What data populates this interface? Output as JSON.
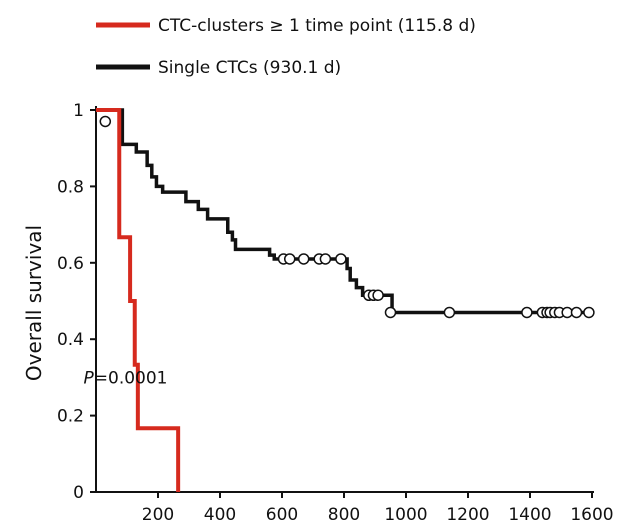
{
  "chart_data": {
    "type": "line",
    "title": "",
    "xlabel": "",
    "ylabel": "Overall survival",
    "xlim": [
      0,
      1600
    ],
    "ylim": [
      0,
      1
    ],
    "x_ticks": [
      200,
      400,
      600,
      800,
      1000,
      1200,
      1400,
      1600
    ],
    "y_ticks": [
      0,
      0.2,
      0.4,
      0.6,
      0.8,
      1
    ],
    "y_tick_labels": [
      "0",
      "0.2",
      "0.4",
      "0.6",
      "0.8",
      "1"
    ],
    "grid": false,
    "legend_position": "top-left",
    "annotation": {
      "prefix": "P",
      "value": "=0.0001",
      "x": 250,
      "y": 0.3
    },
    "series": [
      {
        "name": "CTC-clusters ≥ 1 time point (115.8 d)",
        "color": "#d62a1e",
        "steps": [
          [
            0,
            1.0
          ],
          [
            75,
            0.667
          ],
          [
            110,
            0.5
          ],
          [
            125,
            0.333
          ],
          [
            135,
            0.167
          ],
          [
            265,
            0.0
          ]
        ],
        "censored": []
      },
      {
        "name": "Single CTCs (930.1 d)",
        "color": "#111111",
        "steps": [
          [
            0,
            1.0
          ],
          [
            85,
            0.91
          ],
          [
            130,
            0.89
          ],
          [
            165,
            0.855
          ],
          [
            180,
            0.825
          ],
          [
            195,
            0.8
          ],
          [
            215,
            0.785
          ],
          [
            290,
            0.76
          ],
          [
            330,
            0.74
          ],
          [
            360,
            0.715
          ],
          [
            425,
            0.68
          ],
          [
            440,
            0.66
          ],
          [
            450,
            0.635
          ],
          [
            560,
            0.62
          ],
          [
            575,
            0.61
          ],
          [
            810,
            0.585
          ],
          [
            820,
            0.555
          ],
          [
            840,
            0.535
          ],
          [
            860,
            0.515
          ],
          [
            955,
            0.47
          ]
        ],
        "censored": [
          [
            30,
            0.97
          ],
          [
            605,
            0.61
          ],
          [
            625,
            0.61
          ],
          [
            670,
            0.61
          ],
          [
            720,
            0.61
          ],
          [
            740,
            0.61
          ],
          [
            790,
            0.61
          ],
          [
            880,
            0.515
          ],
          [
            895,
            0.515
          ],
          [
            910,
            0.515
          ],
          [
            950,
            0.47
          ],
          [
            1140,
            0.47
          ],
          [
            1390,
            0.47
          ],
          [
            1440,
            0.47
          ],
          [
            1455,
            0.47
          ],
          [
            1465,
            0.47
          ],
          [
            1480,
            0.47
          ],
          [
            1495,
            0.47
          ],
          [
            1520,
            0.47
          ],
          [
            1550,
            0.47
          ],
          [
            1590,
            0.47
          ]
        ]
      }
    ]
  }
}
